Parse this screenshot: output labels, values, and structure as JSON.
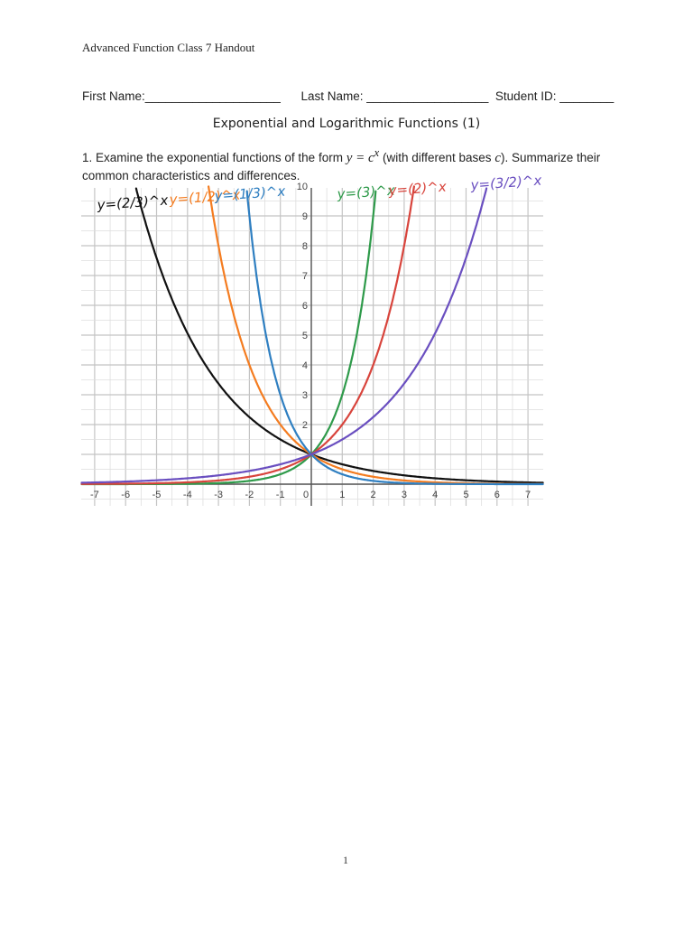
{
  "header": {
    "handout_title": "Advanced Function Class 7 Handout"
  },
  "student_info": {
    "first_name_label": "First Name:",
    "first_name_blank": "____________________",
    "last_name_label": "Last Name:",
    "last_name_blank": "__________________",
    "student_id_label": "Student ID:",
    "student_id_blank": "________"
  },
  "section_title": "Exponential and Logarithmic Functions (1)",
  "question": {
    "number": "1.",
    "text_before": "Examine the exponential functions of the form",
    "formula": "y = c",
    "formula_exp": "x",
    "text_middle": "(with different bases",
    "base_var": "c",
    "text_after": "). Summarize their common characteristics and differences."
  },
  "page_number": "1",
  "chart_data": {
    "type": "line",
    "title": "",
    "xlabel": "",
    "ylabel": "",
    "xlim": [
      -7.5,
      7.5
    ],
    "ylim": [
      -0.7,
      10.0
    ],
    "grid": true,
    "minor_grid_step": 0.5,
    "x_ticks": [
      -7,
      -6,
      -5,
      -4,
      -3,
      -2,
      -1,
      0,
      1,
      2,
      3,
      4,
      5,
      6,
      7
    ],
    "y_ticks": [
      2,
      3,
      4,
      5,
      6,
      7,
      8,
      9,
      10
    ],
    "legend_position": "handwritten labels above curves",
    "series": [
      {
        "name": "y=(2/3)^x",
        "base": 0.6667,
        "color": "#111111",
        "label": "y=(2/3)^x"
      },
      {
        "name": "y=(1/2)^x",
        "base": 0.5,
        "color": "#f47c20",
        "label": "y=(1/2)^x"
      },
      {
        "name": "y=(1/3)^x",
        "base": 0.3333,
        "color": "#2f7fc1",
        "label": "y=(1/3)^x"
      },
      {
        "name": "y=3^x",
        "base": 3,
        "color": "#2e9a4a",
        "label": "y=(3)^x"
      },
      {
        "name": "y=2^x",
        "base": 2,
        "color": "#d8443c",
        "label": "y=(2)^x"
      },
      {
        "name": "y=(3/2)^x",
        "base": 1.5,
        "color": "#6a4fc0",
        "label": "y=(3/2)^x"
      }
    ],
    "common_point": [
      0,
      1
    ]
  }
}
